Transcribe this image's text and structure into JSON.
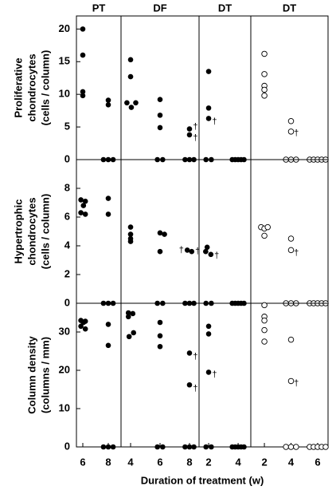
{
  "xlabel": "Duration of treatment (w)",
  "chart_data": [
    {
      "type": "scatter",
      "title": "PT",
      "ylabel": [
        "Proliferative",
        "chondrocytes",
        "(cells / column)"
      ],
      "marker": "filled",
      "color": "#000000",
      "xlim": [
        5.5,
        9
      ],
      "ylim": [
        0,
        22
      ],
      "yticks": [
        0,
        5,
        10,
        15,
        20
      ],
      "x": [
        6,
        6,
        6,
        6,
        8,
        8,
        7.62,
        8,
        8.38
      ],
      "y": [
        20.0,
        16.0,
        10.4,
        9.8,
        9.1,
        8.4,
        0,
        0,
        0
      ],
      "annotations": []
    },
    {
      "type": "scatter",
      "title": "DF",
      "marker": "filled",
      "color": "#000000",
      "xlim": [
        3.35,
        8.65
      ],
      "ylim": [
        0,
        22
      ],
      "x": [
        4,
        4,
        3.75,
        4.05,
        4.35,
        6,
        6,
        6,
        5.82,
        6.18,
        8,
        8,
        7.7,
        8,
        8.3
      ],
      "y": [
        15.3,
        12.7,
        8.7,
        8.0,
        8.7,
        9.2,
        6.8,
        4.9,
        0,
        0,
        4.7,
        3.8,
        0,
        0,
        0
      ],
      "annotations": [
        {
          "text": "†",
          "x": 8.4,
          "y": 5.0
        },
        {
          "text": "†",
          "x": 8.4,
          "y": 3.3
        }
      ]
    },
    {
      "type": "scatter",
      "title": "DT",
      "marker": "filled",
      "color": "#000000",
      "xlim": [
        1.35,
        4.86
      ],
      "ylim": [
        0,
        22
      ],
      "x": [
        2,
        2,
        2,
        1.82,
        2.18,
        3.6,
        3.8,
        4,
        4.2,
        4.4
      ],
      "y": [
        13.5,
        7.9,
        6.3,
        0,
        0,
        0,
        0,
        0,
        0,
        0
      ],
      "annotations": [
        {
          "text": "†",
          "x": 2.4,
          "y": 5.8
        }
      ]
    },
    {
      "type": "scatter",
      "title": "DT",
      "marker": "open",
      "color": "#000000",
      "xlim": [
        0.98,
        6.78
      ],
      "ylim": [
        0,
        22
      ],
      "x": [
        2,
        2,
        2,
        2,
        2,
        4,
        4,
        3.62,
        4,
        4.38,
        5.4,
        5.7,
        6,
        6.3,
        6.6
      ],
      "y": [
        16.2,
        13.1,
        11.3,
        10.7,
        9.8,
        5.9,
        4.3,
        0,
        0,
        0,
        0,
        0,
        0,
        0,
        0
      ],
      "annotations": [
        {
          "text": "†",
          "x": 4.4,
          "y": 4.0
        }
      ]
    },
    {
      "type": "scatter",
      "ylabel": [
        "Hypertrophic",
        "chondrocytes",
        "(cells / column)"
      ],
      "marker": "filled",
      "color": "#000000",
      "xlim": [
        5.5,
        9
      ],
      "ylim": [
        0,
        10
      ],
      "yticks": [
        0,
        2,
        4,
        6,
        8
      ],
      "x": [
        5.85,
        6.2,
        6.05,
        5.85,
        6.2,
        8,
        8,
        7.62,
        8,
        8.38
      ],
      "y": [
        7.2,
        7.1,
        6.8,
        6.3,
        6.2,
        7.3,
        6.2,
        0,
        0,
        0
      ],
      "annotations": []
    },
    {
      "type": "scatter",
      "marker": "filled",
      "color": "#000000",
      "xlim": [
        3.35,
        8.65
      ],
      "ylim": [
        0,
        10
      ],
      "x": [
        4,
        4,
        4,
        4,
        6,
        6.3,
        6,
        5.82,
        6.18,
        7.85,
        8.15,
        7.7,
        8,
        8.3
      ],
      "y": [
        5.3,
        4.8,
        4.5,
        4.3,
        4.9,
        4.8,
        3.6,
        0,
        0,
        3.7,
        3.6,
        0,
        0,
        0
      ],
      "annotations": [
        {
          "text": "†",
          "x": 7.45,
          "y": 3.7
        },
        {
          "text": "†",
          "x": 8.55,
          "y": 3.6
        }
      ]
    },
    {
      "type": "scatter",
      "marker": "filled",
      "color": "#000000",
      "xlim": [
        1.35,
        4.86
      ],
      "ylim": [
        0,
        10
      ],
      "x": [
        1.9,
        1.8,
        2.15,
        1.82,
        2.18,
        3.6,
        3.8,
        4,
        4.2,
        4.4
      ],
      "y": [
        3.9,
        3.6,
        3.4,
        0,
        0,
        0,
        0,
        0,
        0,
        0
      ],
      "annotations": [
        {
          "text": "†",
          "x": 2.55,
          "y": 3.3
        }
      ]
    },
    {
      "type": "scatter",
      "marker": "open",
      "color": "#000000",
      "xlim": [
        0.98,
        6.78
      ],
      "ylim": [
        0,
        10
      ],
      "x": [
        1.75,
        2.0,
        2.25,
        2.0,
        4,
        4,
        3.62,
        4,
        4.38,
        5.4,
        5.7,
        6,
        6.3,
        6.6
      ],
      "y": [
        5.3,
        5.2,
        5.3,
        4.7,
        4.5,
        3.7,
        0,
        0,
        0,
        0,
        0,
        0,
        0,
        0
      ],
      "annotations": [
        {
          "text": "†",
          "x": 4.4,
          "y": 3.5
        }
      ]
    },
    {
      "type": "scatter",
      "ylabel": [
        "Column density",
        "(columns / mm)"
      ],
      "marker": "filled",
      "color": "#000000",
      "xlim": [
        5.5,
        9
      ],
      "ylim": [
        0,
        37.5
      ],
      "yticks": [
        0,
        10,
        20,
        30
      ],
      "xticks": [
        6,
        8
      ],
      "x": [
        5.85,
        6.2,
        6.05,
        5.85,
        6.2,
        8,
        8,
        7.62,
        8,
        8.38
      ],
      "y": [
        33.0,
        32.8,
        32.5,
        31.5,
        30.8,
        32.0,
        26.5,
        0,
        0,
        0
      ],
      "annotations": []
    },
    {
      "type": "scatter",
      "marker": "filled",
      "color": "#000000",
      "xlim": [
        3.35,
        8.65
      ],
      "ylim": [
        0,
        37.5
      ],
      "xticks": [
        4,
        6,
        8
      ],
      "x": [
        3.85,
        4.15,
        3.85,
        4.2,
        3.9,
        6,
        6,
        6,
        5.82,
        6.18,
        8,
        8,
        7.7,
        8,
        8.3
      ],
      "y": [
        35.0,
        34.8,
        34.0,
        29.8,
        28.8,
        32.5,
        29.0,
        26.2,
        0,
        0,
        24.5,
        16.2,
        0,
        0,
        0
      ],
      "annotations": [
        {
          "text": "†",
          "x": 8.4,
          "y": 23.5
        },
        {
          "text": "†",
          "x": 8.4,
          "y": 15.2
        }
      ]
    },
    {
      "type": "scatter",
      "marker": "filled",
      "color": "#000000",
      "xlim": [
        1.35,
        4.86
      ],
      "ylim": [
        0,
        37.5
      ],
      "xticks": [
        2,
        4
      ],
      "x": [
        2,
        2,
        2,
        1.82,
        2.18,
        3.6,
        3.8,
        4,
        4.2,
        4.4
      ],
      "y": [
        31.5,
        29.5,
        19.5,
        0,
        0,
        0,
        0,
        0,
        0,
        0
      ],
      "annotations": [
        {
          "text": "†",
          "x": 2.4,
          "y": 18.8
        }
      ]
    },
    {
      "type": "scatter",
      "marker": "open",
      "color": "#000000",
      "xlim": [
        0.98,
        6.78
      ],
      "ylim": [
        0,
        37.5
      ],
      "xticks": [
        2,
        4,
        6
      ],
      "x": [
        2,
        2,
        2,
        2,
        2,
        4,
        4,
        3.62,
        4,
        4.38,
        5.4,
        5.7,
        6,
        6.3,
        6.6
      ],
      "y": [
        37.0,
        34.0,
        33.0,
        30.5,
        27.5,
        28.0,
        17.2,
        0,
        0,
        0,
        0,
        0,
        0,
        0,
        0
      ],
      "annotations": [
        {
          "text": "†",
          "x": 4.4,
          "y": 16.5
        }
      ]
    }
  ]
}
